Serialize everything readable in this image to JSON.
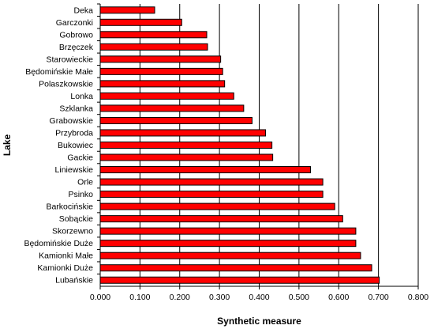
{
  "chart_data": {
    "type": "bar",
    "orientation": "horizontal",
    "categories": [
      "Deka",
      "Garczonki",
      "Gobrowo",
      "Brzęczek",
      "Starowieckie",
      "Będomińskie Małe",
      "Polaszkowskie",
      "Lonka",
      "Szklanka",
      "Grabowskie",
      "Przybroda",
      "Bukowiec",
      "Gackie",
      "Liniewskie",
      "Orle",
      "Psinko",
      "Barkocińskie",
      "Sobąckie",
      "Skorzewno",
      "Będomińskie Duże",
      "Kamionki Małe",
      "Kamionki Duże",
      "Lubańskie"
    ],
    "values": [
      0.137,
      0.205,
      0.268,
      0.27,
      0.303,
      0.308,
      0.313,
      0.336,
      0.361,
      0.382,
      0.416,
      0.432,
      0.434,
      0.529,
      0.56,
      0.56,
      0.59,
      0.61,
      0.643,
      0.643,
      0.655,
      0.683,
      0.702
    ],
    "xlabel": "Synthetic measure",
    "ylabel": "Lake",
    "xlim": [
      0,
      0.8
    ],
    "xticks": [
      "0.000",
      "0.100",
      "0.200",
      "0.300",
      "0.400",
      "0.500",
      "0.600",
      "0.700",
      "0.800"
    ],
    "grid": "vertical",
    "legend": "none",
    "colors": {
      "bar_fill": "#ff0000",
      "bar_stroke": "#000000",
      "grid": "#000000"
    }
  }
}
